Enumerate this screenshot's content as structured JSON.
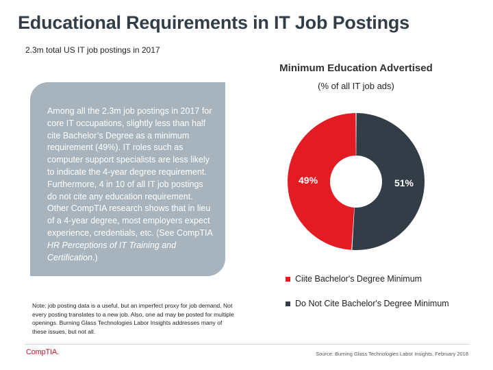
{
  "page": {
    "title": "Educational Requirements in IT Job Postings",
    "subtitle": "2.3m total US IT job postings in 2017"
  },
  "callout": {
    "text_main": "Among all the 2.3m job postings in 2017 for core IT occupations, slightly less than half cite Bachelor’s Degree as a minimum requirement (49%). IT roles such as computer support specialists are less likely to indicate the 4-year degree requirement.  Furthermore, 4 in 10 of all IT job postings do not cite any education requirement. Other CompTIA research shows that in lieu of a 4-year degree, most employers expect experience, credentials, etc. (See CompTIA ",
    "text_italic": "HR Perceptions of IT Training and Certification",
    "text_end": ".)"
  },
  "note": "Note: job posting data is a useful, but an imperfect proxy for job demand. Not every posting translates to a new job. Also, one ad may be posted for multiple openings. Burning Glass Technologies Labor Insights addresses many of these issues, but not all.",
  "chart_data": {
    "type": "pie",
    "title": "Minimum Education Advertised",
    "subtitle": "(% of all IT job ads)",
    "unit": "%",
    "donut": true,
    "legend_position": "bottom",
    "slices": [
      {
        "label": "Ciite Bachelor's Degree Minimum",
        "value": 49,
        "display": "49%",
        "color": "#e31b23"
      },
      {
        "label": "Do Not Cite Bachelor's Degree Minimum",
        "value": 51,
        "display": "51%",
        "color": "#333d47"
      }
    ]
  },
  "footer": {
    "logo": "CompTIA.",
    "source": "Source: Burning Glass Technologies Labor Insights, February 2018"
  }
}
